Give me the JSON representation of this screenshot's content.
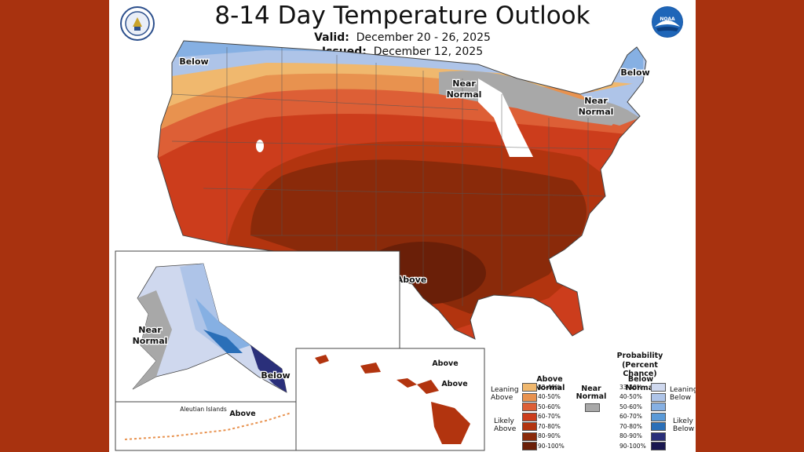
{
  "header": {
    "title": "8-14 Day Temperature Outlook",
    "valid_label": "Valid:",
    "valid_value": "December 20 - 26, 2025",
    "issued_label": "Issued:",
    "issued_value": "December 12, 2025"
  },
  "logos": {
    "left": "commerce-seal-icon",
    "right": "noaa-logo-icon"
  },
  "map_labels": {
    "below_nw": "Below",
    "near_normal_great_lakes": [
      "Near",
      "Normal"
    ],
    "below_ne": "Below",
    "near_normal_ne": [
      "Near",
      "Normal"
    ],
    "above_south": "Above",
    "alaska_near_normal": [
      "Near",
      "Normal"
    ],
    "alaska_below": "Below",
    "aleutian_islands": "Aleutian Islands",
    "aleutian_above": "Above",
    "hawaii_above_1": "Above",
    "hawaii_above_2": "Above"
  },
  "legend": {
    "title": "Probability",
    "subtitle": "(Percent Chance)",
    "above_header": "Above Normal",
    "below_header": "Below Normal",
    "near_normal": [
      "Near",
      "Normal"
    ],
    "leaning_above": [
      "Leaning",
      "Above"
    ],
    "likely_above": [
      "Likely",
      "Above"
    ],
    "leaning_below": [
      "Leaning",
      "Below"
    ],
    "likely_below": [
      "Likely",
      "Below"
    ],
    "ranges": [
      "33-40%",
      "40-50%",
      "50-60%",
      "60-70%",
      "70-80%",
      "80-90%",
      "90-100%"
    ],
    "above_colors": [
      "#f0b86e",
      "#e8924f",
      "#dd5f36",
      "#cc3d1c",
      "#b2340f",
      "#8a2a0a",
      "#6a1f08"
    ],
    "below_colors": [
      "#cfd8ee",
      "#aec4e8",
      "#86b0e3",
      "#5a9ad8",
      "#2a6fb8",
      "#2a2f7a",
      "#1a1850"
    ],
    "near_color": "#a8a8a8"
  }
}
